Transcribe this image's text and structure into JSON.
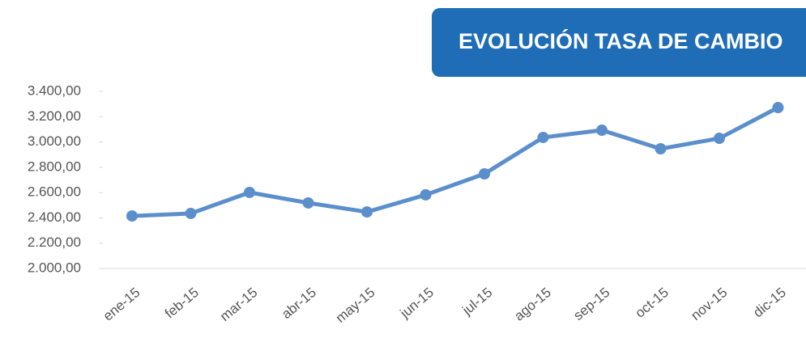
{
  "chart_data": {
    "type": "line",
    "title": "EVOLUCIÓN TASA DE CAMBIO",
    "categories": [
      "ene-15",
      "feb-15",
      "mar-15",
      "abr-15",
      "may-15",
      "jun-15",
      "jul-15",
      "ago-15",
      "sep-15",
      "oct-15",
      "nov-15",
      "dic-15"
    ],
    "series": [
      {
        "name": "Tasa de cambio",
        "color": "#5b8fcb",
        "values": [
          2415,
          2435,
          2601,
          2518,
          2447,
          2582,
          2748,
          3036,
          3093,
          2946,
          3029,
          3272
        ]
      }
    ],
    "ylim": [
      2000,
      3400
    ],
    "yticks": [
      {
        "value": 2000,
        "label": "2.000,00"
      },
      {
        "value": 2200,
        "label": "2.200,00"
      },
      {
        "value": 2400,
        "label": "2.400,00"
      },
      {
        "value": 2600,
        "label": "2.600,00"
      },
      {
        "value": 2800,
        "label": "2.800,00"
      },
      {
        "value": 3000,
        "label": "3.000,00"
      },
      {
        "value": 3200,
        "label": "3.200,00"
      },
      {
        "value": 3400,
        "label": "3.400,00"
      }
    ],
    "title_color": "#1f6db6"
  }
}
